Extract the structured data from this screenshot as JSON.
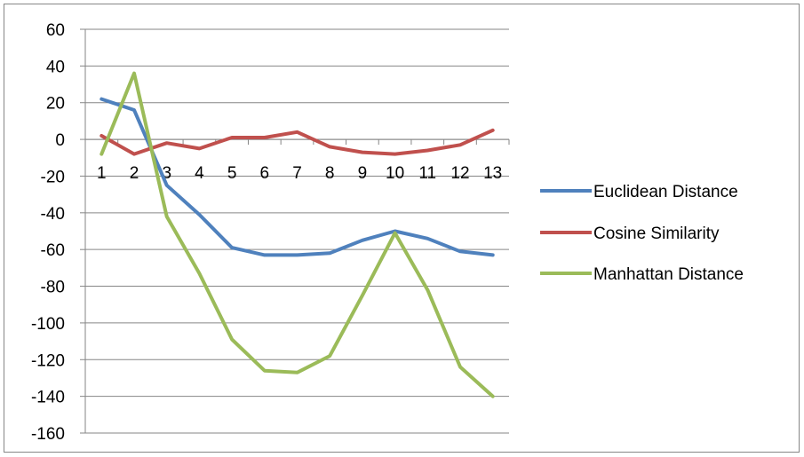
{
  "chart_data": {
    "type": "line",
    "title": "",
    "xlabel": "",
    "ylabel": "",
    "categories": [
      "1",
      "2",
      "3",
      "4",
      "5",
      "6",
      "7",
      "8",
      "9",
      "10",
      "11",
      "12",
      "13"
    ],
    "ylim": [
      -160,
      60
    ],
    "yticks": [
      60,
      40,
      20,
      0,
      -20,
      -40,
      -60,
      -80,
      -100,
      -120,
      -140,
      -160
    ],
    "grid": true,
    "legend_position": "right",
    "series": [
      {
        "name": "Euclidean Distance",
        "color": "#4f81bd",
        "values": [
          22,
          16,
          -25,
          -41,
          -59,
          -63,
          -63,
          -62,
          -55,
          -50,
          -54,
          -61,
          -63
        ]
      },
      {
        "name": "Cosine Similarity",
        "color": "#c0504d",
        "values": [
          2,
          -8,
          -2,
          -5,
          1,
          1,
          4,
          -4,
          -7,
          -8,
          -6,
          -3,
          5
        ]
      },
      {
        "name": "Manhattan Distance",
        "color": "#9bbb59",
        "values": [
          -8,
          36,
          -42,
          -73,
          -109,
          -126,
          -127,
          -118,
          -85,
          -51,
          -82,
          -124,
          -140
        ]
      }
    ]
  }
}
